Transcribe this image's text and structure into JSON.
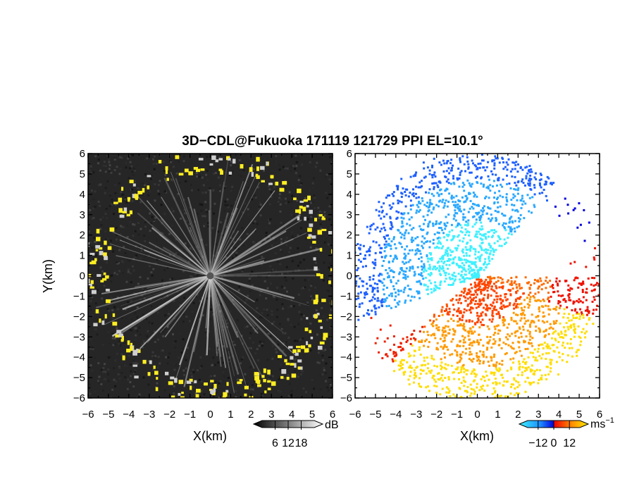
{
  "title": "3D−CDL@Fukuoka 171119 121729 PPI EL=10.1°",
  "chart_data": [
    {
      "type": "heatmap",
      "panel": "left",
      "quantity": "SNR",
      "xlabel": "X(km)",
      "ylabel": "Y(km)",
      "xlim": [
        -6,
        6
      ],
      "ylim": [
        -6,
        6
      ],
      "xticks": [
        "−6",
        "−5",
        "−4",
        "−3",
        "−2",
        "−1",
        "0",
        "1",
        "2",
        "3",
        "4",
        "5",
        "6"
      ],
      "yticks": [
        "6",
        "5",
        "4",
        "3",
        "2",
        "1",
        "0",
        "−1",
        "−2",
        "−3",
        "−4",
        "−5",
        "−6"
      ],
      "colorbar": {
        "unit": "dB",
        "tick_labels": [
          "6",
          "12",
          "18"
        ],
        "tick_values": [
          6,
          12,
          18
        ],
        "range": [
          0,
          24
        ],
        "colors": [
          "#000000",
          "#ffffff"
        ]
      },
      "strong_echo_color": "#ffee22",
      "max_range_km": 6
    },
    {
      "type": "heatmap",
      "panel": "right",
      "quantity": "Doppler velocity",
      "xlabel": "X(km)",
      "xlim": [
        -6,
        6
      ],
      "ylim": [
        -6,
        6
      ],
      "xticks": [
        "−6",
        "−5",
        "−4",
        "−3",
        "−2",
        "−1",
        "0",
        "1",
        "2",
        "3",
        "4",
        "5",
        "6"
      ],
      "yticks": [
        "6",
        "5",
        "4",
        "3",
        "2",
        "1",
        "0",
        "−1",
        "−2",
        "−3",
        "−4",
        "−5",
        "−6"
      ],
      "colorbar": {
        "unit": "ms",
        "unit_exponent": "−1",
        "tick_labels": [
          "−12",
          "0",
          "12"
        ],
        "tick_values": [
          -12,
          0,
          12
        ],
        "range": [
          -20,
          20
        ],
        "colors": [
          "#3ff0ff",
          "#1e90ff",
          "#0000dd",
          "#ee0000",
          "#ff8800",
          "#ffee00"
        ]
      },
      "max_range_km": 6
    }
  ]
}
